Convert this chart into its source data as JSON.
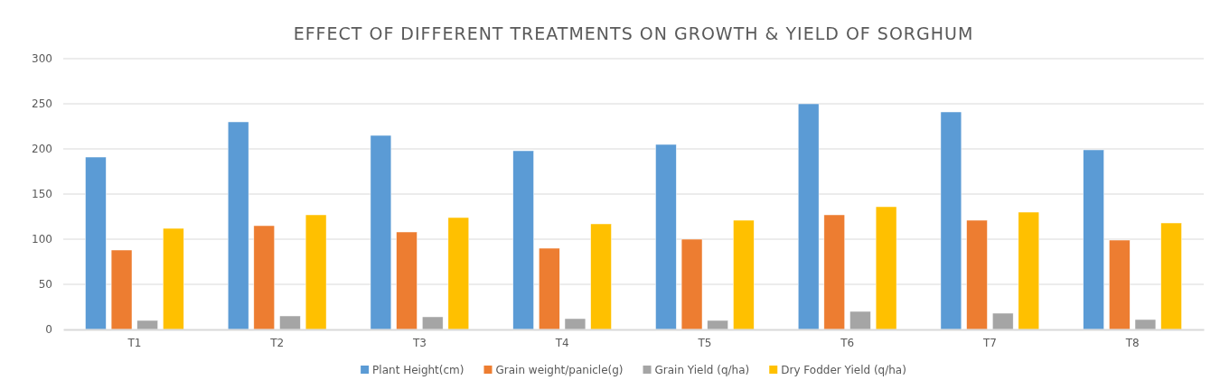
{
  "chart_data": {
    "type": "bar",
    "title": "EFFECT OF DIFFERENT TREATMENTS ON GROWTH & YIELD OF SORGHUM",
    "categories": [
      "T1",
      "T2",
      "T3",
      "T4",
      "T5",
      "T6",
      "T7",
      "T8"
    ],
    "series": [
      {
        "name": "Plant Height(cm)",
        "color": "#5b9bd5",
        "values": [
          191,
          230,
          215,
          198,
          205,
          250,
          241,
          199
        ]
      },
      {
        "name": "Grain weight/panicle(g)",
        "color": "#ed7d31",
        "values": [
          88,
          115,
          108,
          90,
          100,
          127,
          121,
          99
        ]
      },
      {
        "name": "Grain Yield (q/ha)",
        "color": "#a5a5a5",
        "values": [
          10,
          15,
          14,
          12,
          10,
          20,
          18,
          11
        ]
      },
      {
        "name": "Dry Fodder Yield (q/ha)",
        "color": "#ffc000",
        "values": [
          112,
          127,
          124,
          117,
          121,
          136,
          130,
          118
        ]
      }
    ],
    "ylim": [
      0,
      300
    ],
    "yticks": [
      0,
      50,
      100,
      150,
      200,
      250,
      300
    ],
    "grid": "y",
    "legend": "bottom"
  }
}
